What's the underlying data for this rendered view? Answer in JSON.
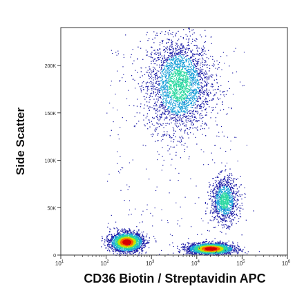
{
  "chart_data": {
    "type": "scatter",
    "style": "flow-cytometry density dot plot",
    "xlabel": "CD36 Biotin / Streptavidin APC",
    "ylabel": "Side Scatter",
    "x_scale": "log",
    "xlim": [
      10,
      1000000
    ],
    "ylim": [
      0,
      240000
    ],
    "x_ticks": [
      {
        "value": 10,
        "label": "10^1"
      },
      {
        "value": 100,
        "label": "10^2"
      },
      {
        "value": 1000,
        "label": "10^3"
      },
      {
        "value": 10000,
        "label": "10^4"
      },
      {
        "value": 100000,
        "label": "10^5"
      },
      {
        "value": 1000000,
        "label": "10^6"
      }
    ],
    "y_ticks": [
      {
        "value": 0,
        "label": "0"
      },
      {
        "value": 50000,
        "label": "50K"
      },
      {
        "value": 100000,
        "label": "100K"
      },
      {
        "value": 150000,
        "label": "150K"
      },
      {
        "value": 200000,
        "label": "200K"
      }
    ],
    "grid": false,
    "density_colors": [
      "#1a1aa6",
      "#1aa0d8",
      "#2ad8a0",
      "#c8e000",
      "#ff5a00",
      "#d40000"
    ],
    "populations": [
      {
        "x_center": 4000,
        "x_log_spread": 0.35,
        "y_center": 180000,
        "y_spread": 25000,
        "density": "medium-high"
      },
      {
        "x_center": 40000,
        "x_log_spread": 0.15,
        "y_center": 58000,
        "y_spread": 12000,
        "density": "medium"
      },
      {
        "x_center": 280,
        "x_log_spread": 0.18,
        "y_center": 14000,
        "y_spread": 5000,
        "density": "high"
      },
      {
        "x_center": 20000,
        "x_log_spread": 0.25,
        "y_center": 7000,
        "y_spread": 3000,
        "density": "high"
      }
    ]
  }
}
